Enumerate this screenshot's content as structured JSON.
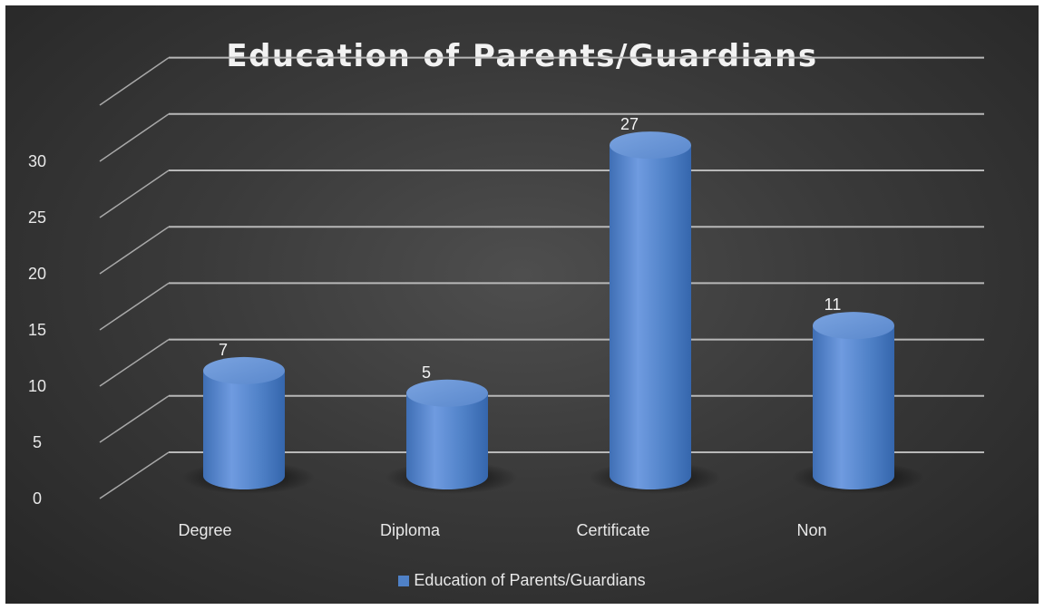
{
  "chart_data": {
    "type": "bar",
    "title": "Education  of Parents/Guardians",
    "categories": [
      "Degree",
      "Diploma",
      "Certificate",
      "Non"
    ],
    "series": [
      {
        "name": "Education of Parents/Guardians",
        "values": [
          7,
          5,
          27,
          11
        ]
      }
    ],
    "y_ticks": [
      "0",
      "5",
      "10",
      "15",
      "20",
      "25",
      "30"
    ],
    "ylim": [
      0,
      35
    ],
    "grid": true,
    "legend_position": "bottom",
    "data_labels": [
      "7",
      "5",
      "27",
      "11"
    ],
    "style": "3d-cylinder",
    "colors": {
      "bar": "#4f81c7",
      "background": "#3a3a3a",
      "grid": "#bfbfbf"
    }
  }
}
